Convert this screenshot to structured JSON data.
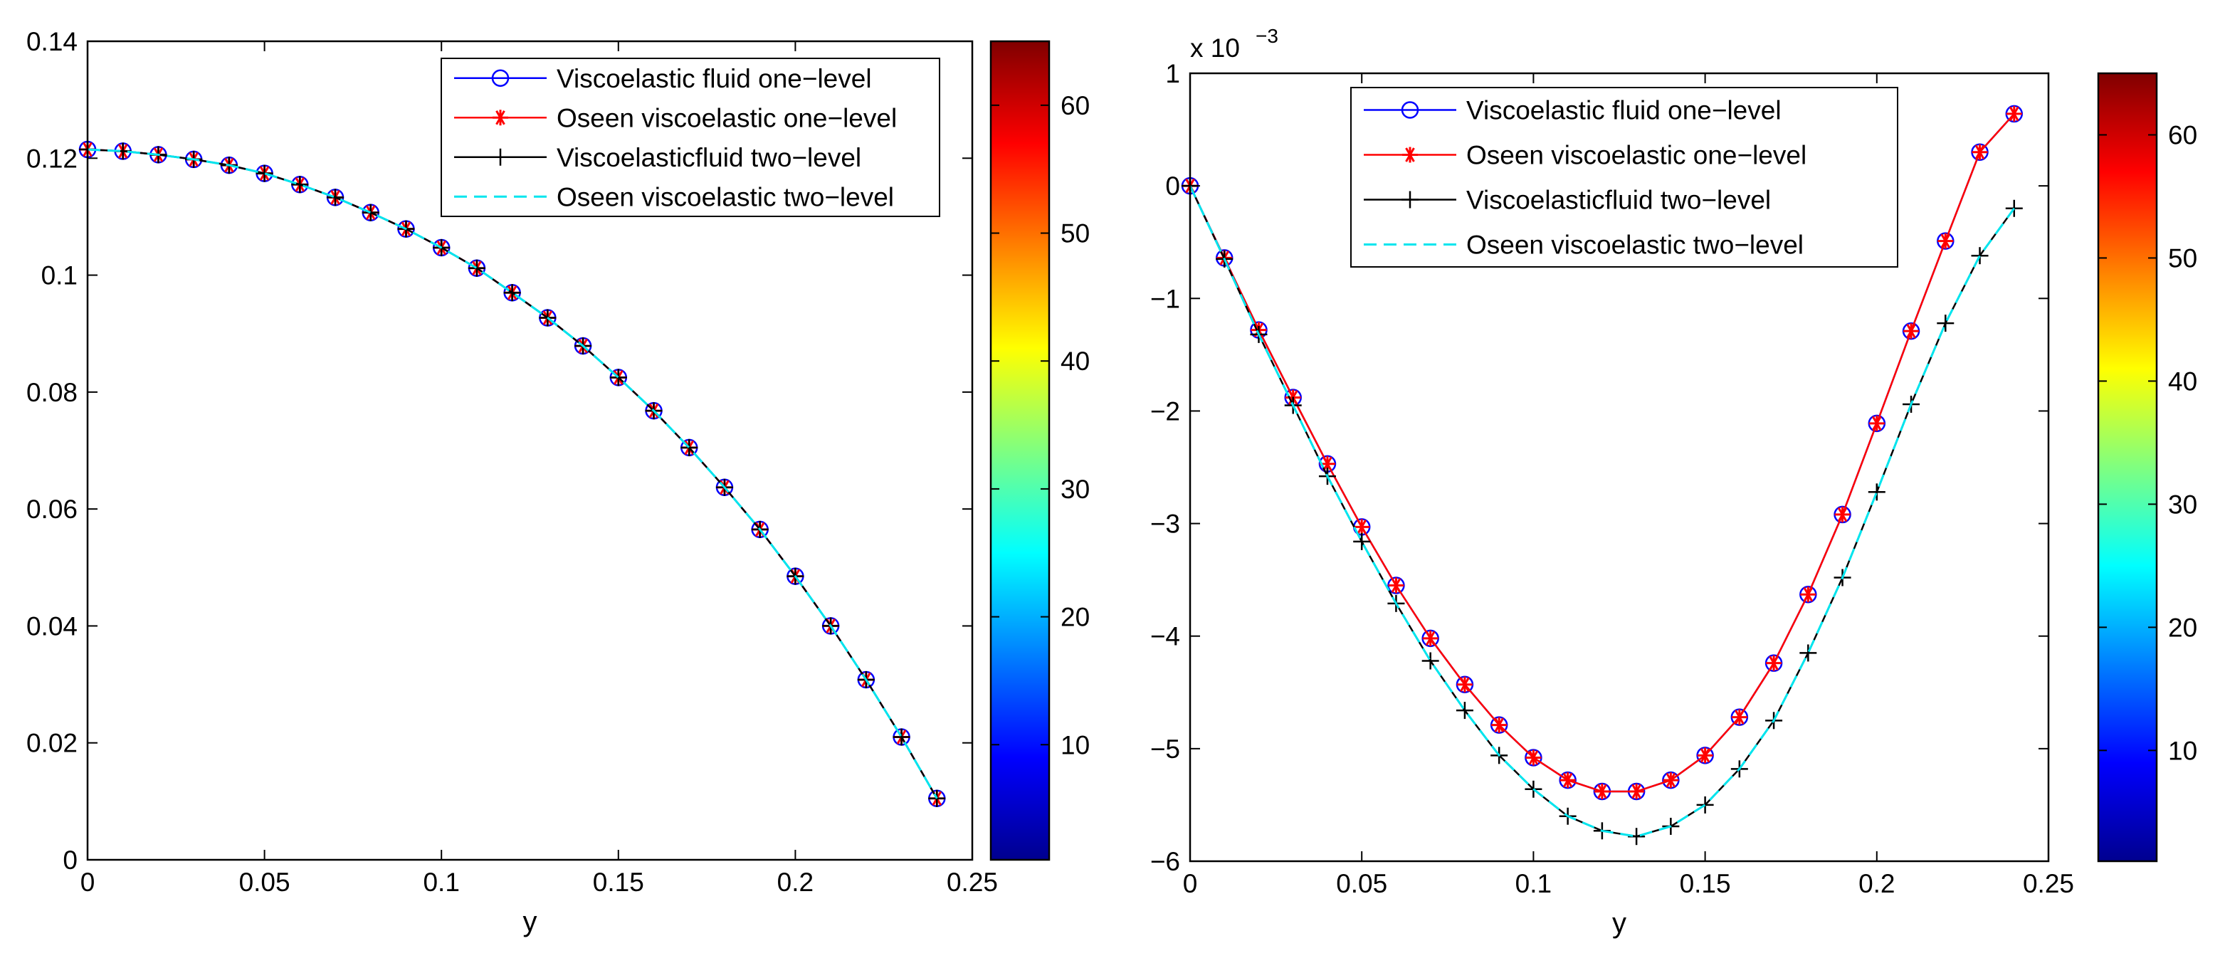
{
  "charts": [
    {
      "type": "line",
      "xlabel": "y",
      "ylabel": "",
      "xlim": [
        0,
        0.25
      ],
      "ylim": [
        0,
        0.14
      ],
      "xticks": [
        0,
        0.05,
        0.1,
        0.15,
        0.2,
        0.25
      ],
      "yticks": [
        0,
        0.02,
        0.04,
        0.06,
        0.08,
        0.1,
        0.12,
        0.14
      ],
      "xtick_labels": [
        "0",
        "0.05",
        "0.1",
        "0.15",
        "0.2",
        "0.25"
      ],
      "ytick_labels": [
        "0",
        "0.02",
        "0.04",
        "0.06",
        "0.08",
        "0.1",
        "0.12",
        "0.14"
      ],
      "exponent_label": "",
      "legend_position": "top-right",
      "x": [
        0,
        0.01,
        0.02,
        0.03,
        0.04,
        0.05,
        0.06,
        0.07,
        0.08,
        0.09,
        0.1,
        0.11,
        0.12,
        0.13,
        0.14,
        0.15,
        0.16,
        0.17,
        0.18,
        0.19,
        0.2,
        0.21,
        0.22,
        0.23,
        0.24
      ],
      "series": [
        {
          "name": "Viscoelastic fluid one−level",
          "color": "#0000ff",
          "marker": "circle",
          "dash": "solid",
          "values": [
            0.1215,
            0.1212,
            0.1206,
            0.1198,
            0.1188,
            0.1174,
            0.1155,
            0.1133,
            0.1107,
            0.1079,
            0.1047,
            0.1012,
            0.097,
            0.0927,
            0.0879,
            0.0825,
            0.0768,
            0.0705,
            0.0637,
            0.0565,
            0.0485,
            0.04,
            0.0308,
            0.021,
            0.0105
          ]
        },
        {
          "name": "Oseen viscoelastic one−level",
          "color": "#ff0000",
          "marker": "asterisk",
          "dash": "solid",
          "values": [
            0.1215,
            0.1212,
            0.1206,
            0.1198,
            0.1188,
            0.1174,
            0.1155,
            0.1133,
            0.1107,
            0.1079,
            0.1047,
            0.1012,
            0.097,
            0.0927,
            0.0879,
            0.0825,
            0.0768,
            0.0705,
            0.0637,
            0.0565,
            0.0485,
            0.04,
            0.0308,
            0.021,
            0.0105
          ]
        },
        {
          "name": "Viscoelasticfluid two−level",
          "color": "#000000",
          "marker": "plus",
          "dash": "solid",
          "values": [
            0.1215,
            0.1212,
            0.1206,
            0.1198,
            0.1188,
            0.1174,
            0.1155,
            0.1133,
            0.1107,
            0.1079,
            0.1047,
            0.1012,
            0.097,
            0.0927,
            0.0879,
            0.0825,
            0.0768,
            0.0705,
            0.0637,
            0.0565,
            0.0485,
            0.04,
            0.0308,
            0.021,
            0.0105
          ]
        },
        {
          "name": "Oseen viscoelastic two−level",
          "color": "#00e5ee",
          "marker": "none",
          "dash": "dashed",
          "values": [
            0.1215,
            0.1212,
            0.1206,
            0.1198,
            0.1188,
            0.1174,
            0.1155,
            0.1133,
            0.1107,
            0.1079,
            0.1047,
            0.1012,
            0.097,
            0.0927,
            0.0879,
            0.0825,
            0.0768,
            0.0705,
            0.0637,
            0.0565,
            0.0485,
            0.04,
            0.0308,
            0.021,
            0.0105
          ]
        }
      ],
      "colorbar": {
        "range": [
          1,
          65
        ],
        "ticks": [
          10,
          20,
          30,
          40,
          50,
          60
        ],
        "tick_labels": [
          "10",
          "20",
          "30",
          "40",
          "50",
          "60"
        ],
        "colormap": "jet"
      }
    },
    {
      "type": "line",
      "xlabel": "y",
      "ylabel": "",
      "xlim": [
        0,
        0.25
      ],
      "ylim": [
        -6,
        1
      ],
      "xticks": [
        0,
        0.05,
        0.1,
        0.15,
        0.2,
        0.25
      ],
      "yticks": [
        -6,
        -5,
        -4,
        -3,
        -2,
        -1,
        0,
        1
      ],
      "xtick_labels": [
        "0",
        "0.05",
        "0.1",
        "0.15",
        "0.2",
        "0.25"
      ],
      "ytick_labels": [
        "−6",
        "−5",
        "−4",
        "−3",
        "−2",
        "−1",
        "0",
        "1"
      ],
      "exponent_label": "x 10",
      "exponent_power": "−3",
      "legend_position": "top-center",
      "x": [
        0,
        0.01,
        0.02,
        0.03,
        0.04,
        0.05,
        0.06,
        0.07,
        0.08,
        0.09,
        0.1,
        0.11,
        0.12,
        0.13,
        0.14,
        0.15,
        0.16,
        0.17,
        0.18,
        0.19,
        0.2,
        0.21,
        0.22,
        0.23,
        0.24
      ],
      "series": [
        {
          "name": "Viscoelastic fluid one−level",
          "color": "#0000ff",
          "marker": "circle",
          "dash": "solid",
          "values": [
            0,
            -0.64,
            -1.28,
            -1.88,
            -2.47,
            -3.03,
            -3.55,
            -4.02,
            -4.43,
            -4.79,
            -5.08,
            -5.28,
            -5.38,
            -5.38,
            -5.28,
            -5.06,
            -4.72,
            -4.24,
            -3.63,
            -2.92,
            -2.11,
            -1.29,
            -0.49,
            0.3,
            0.64
          ]
        },
        {
          "name": "Oseen viscoelastic one−level",
          "color": "#ff0000",
          "marker": "asterisk",
          "dash": "solid",
          "values": [
            0,
            -0.64,
            -1.28,
            -1.88,
            -2.47,
            -3.03,
            -3.55,
            -4.02,
            -4.43,
            -4.79,
            -5.08,
            -5.28,
            -5.38,
            -5.38,
            -5.28,
            -5.06,
            -4.72,
            -4.24,
            -3.63,
            -2.92,
            -2.11,
            -1.29,
            -0.49,
            0.3,
            0.64
          ]
        },
        {
          "name": "Viscoelasticfluid two−level",
          "color": "#000000",
          "marker": "plus",
          "dash": "solid",
          "values": [
            0,
            -0.65,
            -1.32,
            -1.95,
            -2.58,
            -3.16,
            -3.71,
            -4.22,
            -4.66,
            -5.06,
            -5.36,
            -5.6,
            -5.73,
            -5.78,
            -5.69,
            -5.5,
            -5.18,
            -4.75,
            -4.15,
            -3.48,
            -2.72,
            -1.94,
            -1.22,
            -0.62,
            -0.2
          ]
        },
        {
          "name": "Oseen viscoelastic two−level",
          "color": "#00e5ee",
          "marker": "none",
          "dash": "dashed",
          "values": [
            0,
            -0.65,
            -1.32,
            -1.95,
            -2.58,
            -3.16,
            -3.71,
            -4.22,
            -4.66,
            -5.06,
            -5.36,
            -5.6,
            -5.73,
            -5.78,
            -5.69,
            -5.5,
            -5.18,
            -4.75,
            -4.15,
            -3.48,
            -2.72,
            -1.94,
            -1.22,
            -0.62,
            -0.2
          ]
        }
      ],
      "colorbar": {
        "range": [
          1,
          65
        ],
        "ticks": [
          10,
          20,
          30,
          40,
          50,
          60
        ],
        "tick_labels": [
          "10",
          "20",
          "30",
          "40",
          "50",
          "60"
        ],
        "colormap": "jet"
      }
    }
  ]
}
